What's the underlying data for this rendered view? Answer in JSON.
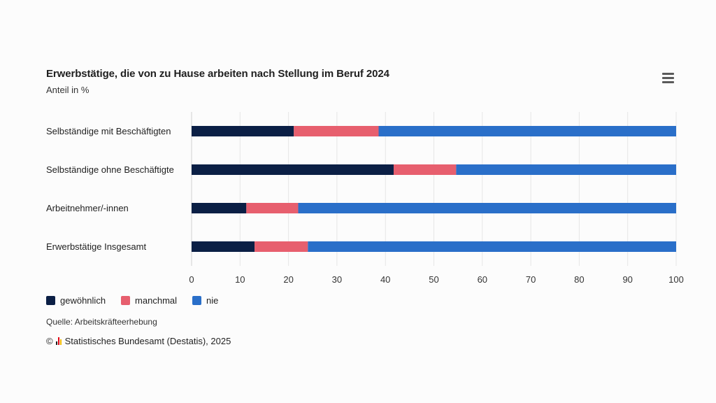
{
  "chart_data": {
    "type": "bar",
    "orientation": "horizontal",
    "stacked": true,
    "title": "Erwerbstätige, die von zu Hause arbeiten nach Stellung im Beruf 2024",
    "subtitle": "Anteil in %",
    "categories": [
      "Selbständige mit Beschäftigten",
      "Selbständige ohne Beschäftigte",
      "Arbeitnehmer/-innen",
      "Erwerbstätige Insgesamt"
    ],
    "series": [
      {
        "name": "gewöhnlich",
        "color": "#0b1f45",
        "values": [
          21.1,
          41.7,
          11.3,
          13.0
        ]
      },
      {
        "name": "manchmal",
        "color": "#e75f6e",
        "values": [
          17.5,
          12.9,
          10.7,
          11.0
        ]
      },
      {
        "name": "nie",
        "color": "#2a6fc9",
        "values": [
          61.4,
          45.4,
          78.0,
          76.0
        ]
      }
    ],
    "xlim": [
      0,
      100
    ],
    "xticks": [
      "0",
      "10",
      "20",
      "30",
      "40",
      "50",
      "60",
      "70",
      "80",
      "90",
      "100"
    ],
    "grid": true,
    "legend_position": "bottom-left"
  },
  "source": "Quelle: Arbeitskräfteerhebung",
  "credit": {
    "symbol": "©",
    "text": "Statistisches Bundesamt (Destatis), 2025"
  },
  "icons": {
    "menu": "menu-icon",
    "logo": "destatis-logo-icon"
  }
}
